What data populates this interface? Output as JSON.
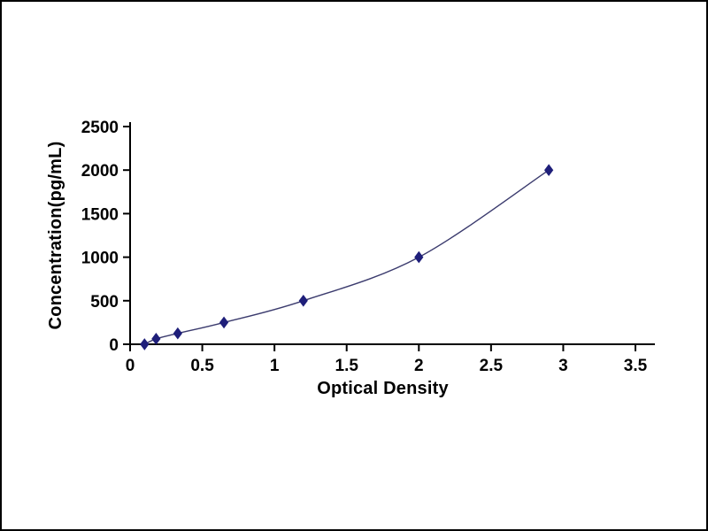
{
  "frame": {
    "background": "#ffffff",
    "border_color": "#000000"
  },
  "chart_data": {
    "type": "line",
    "title": "",
    "xlabel": "Optical Density",
    "ylabel": "Concentration(pg/mL)",
    "x": [
      0.1,
      0.18,
      0.33,
      0.65,
      1.2,
      2.0,
      2.9
    ],
    "y": [
      0,
      62.5,
      125,
      250,
      500,
      1000,
      2000
    ],
    "xlim": [
      0,
      3.5
    ],
    "ylim": [
      0,
      2500
    ],
    "x_ticks": {
      "values": [
        0,
        0.5,
        1,
        1.5,
        2,
        2.5,
        3,
        3.5
      ],
      "labels": [
        "0",
        "0.5",
        "1",
        "1.5",
        "2",
        "2.5",
        "3",
        "3.5"
      ]
    },
    "y_ticks": {
      "values": [
        0,
        500,
        1000,
        1500,
        2000,
        2500
      ],
      "labels": [
        "0",
        "500",
        "1000",
        "1500",
        "2000",
        "2500"
      ]
    },
    "grid": false,
    "legend": null,
    "marker": "diamond",
    "line_color": "#3b3b6e",
    "marker_color": "#1f1f7a",
    "axis_color": "#000000"
  }
}
